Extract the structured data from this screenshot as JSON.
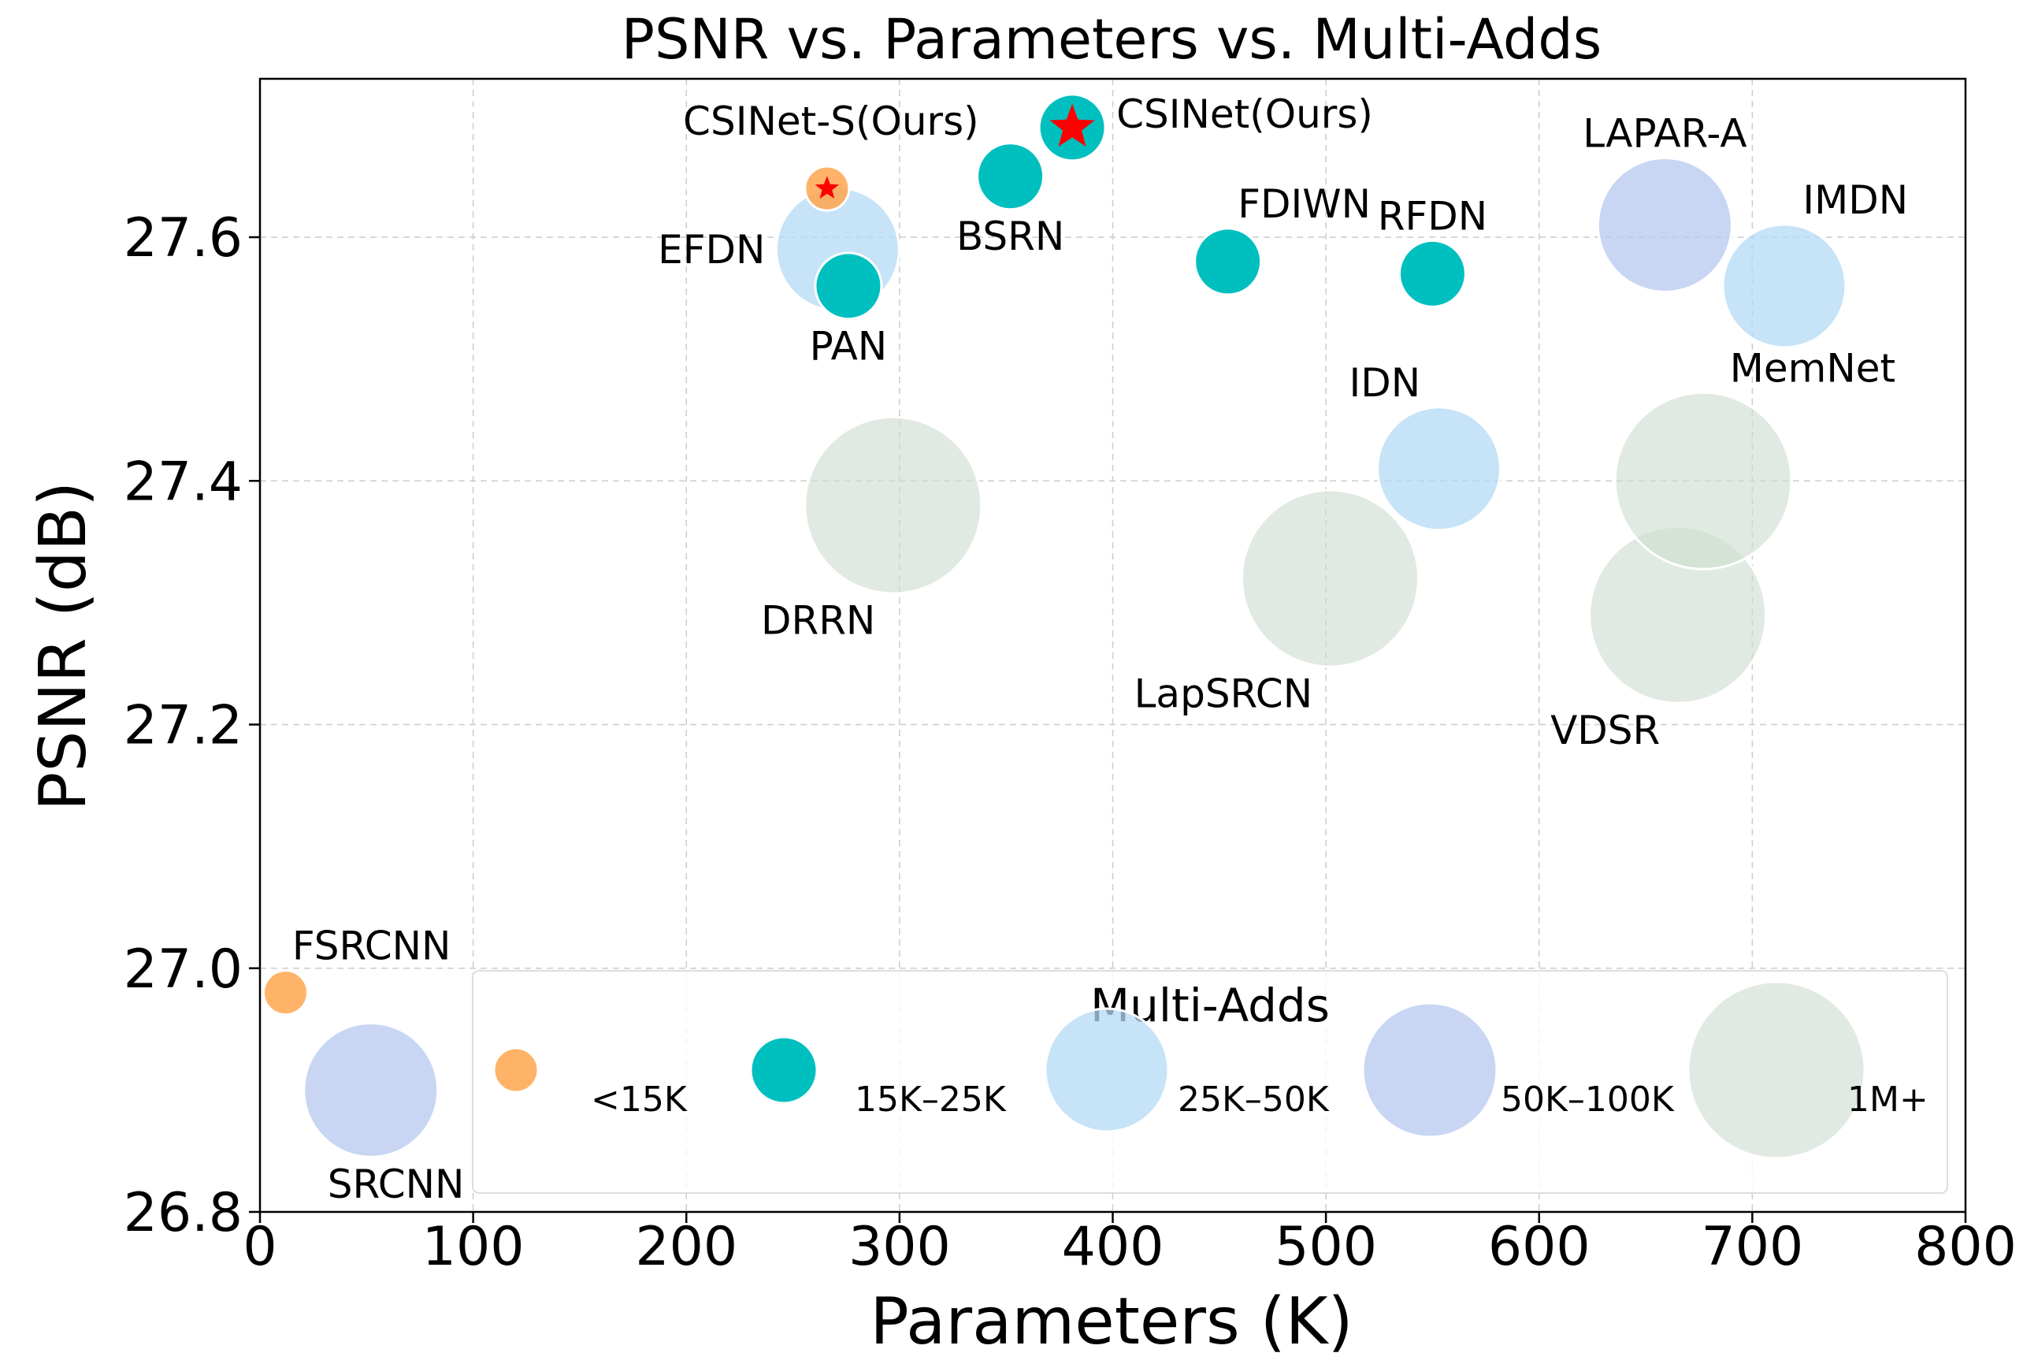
{
  "chart_data": {
    "type": "scatter",
    "title": "PSNR vs. Parameters vs. Multi-Adds",
    "xlabel": "Parameters (K)",
    "ylabel": "PSNR (dB)",
    "xlim": [
      0,
      800
    ],
    "ylim": [
      26.8,
      27.73
    ],
    "xticks": [
      0,
      100,
      200,
      300,
      400,
      500,
      600,
      700,
      800
    ],
    "yticks": [
      26.8,
      27.0,
      27.2,
      27.4,
      27.6
    ],
    "ytick_labels": [
      "26.8",
      "27.0",
      "27.2",
      "27.4",
      "27.6"
    ],
    "grid": true,
    "legend": {
      "title": "Multi-Adds",
      "placement": "bottom-right",
      "entries": [
        {
          "label": "<15K",
          "category": "lt15k"
        },
        {
          "label": "15K–25K",
          "category": "15k-25k"
        },
        {
          "label": "25K–50K",
          "category": "25k-50k"
        },
        {
          "label": "50K–100K",
          "category": "50k-100k"
        },
        {
          "label": "1M+",
          "category": "1m-plus"
        }
      ]
    },
    "categories": {
      "lt15k": {
        "color": "#ffa64d",
        "size": 1,
        "opacity": 0.85
      },
      "15k-25k": {
        "color": "#00bfbf",
        "size": 2,
        "opacity": 1.0
      },
      "25k-50k": {
        "color": "#b3d9f5",
        "size": 3,
        "opacity": 0.75
      },
      "50k-100k": {
        "color": "#b6c8f0",
        "size": 4,
        "opacity": 0.75
      },
      "1m-plus": {
        "color": "#cddccf",
        "size": 5,
        "opacity": 0.6
      }
    },
    "points": [
      {
        "name": "SRCNN",
        "label": "SRCNN",
        "params": 52,
        "psnr": 26.9,
        "category": "50k-100k",
        "label_anchor": "below-left"
      },
      {
        "name": "FSRCNN",
        "label": "FSRCNN",
        "params": 12,
        "psnr": 26.98,
        "category": "lt15k",
        "label_anchor": "above-right"
      },
      {
        "name": "DRRN",
        "label": "DRRN",
        "params": 297,
        "psnr": 27.38,
        "category": "1m-plus",
        "label_anchor": "below-left"
      },
      {
        "name": "LapSRCN",
        "label": "LapSRCN",
        "params": 502,
        "psnr": 27.32,
        "category": "1m-plus",
        "label_anchor": "below-left"
      },
      {
        "name": "VDSR",
        "label": "VDSR",
        "params": 665,
        "psnr": 27.29,
        "category": "1m-plus",
        "label_anchor": "below-left"
      },
      {
        "name": "MemNet",
        "label": "MemNet",
        "params": 677,
        "psnr": 27.4,
        "category": "1m-plus",
        "label_anchor": "above-right"
      },
      {
        "name": "IDN",
        "label": "IDN",
        "params": 553,
        "psnr": 27.41,
        "category": "25k-50k",
        "label_anchor": "above-left"
      },
      {
        "name": "LAPAR-A",
        "label": "LAPAR-A",
        "params": 659,
        "psnr": 27.61,
        "category": "50k-100k",
        "label_anchor": "above"
      },
      {
        "name": "IMDN",
        "label": "IMDN",
        "params": 715,
        "psnr": 27.56,
        "category": "25k-50k",
        "label_anchor": "above-right"
      },
      {
        "name": "EFDN",
        "label": "EFDN",
        "params": 271,
        "psnr": 27.59,
        "category": "25k-50k",
        "label_anchor": "left"
      },
      {
        "name": "PAN",
        "label": "PAN",
        "params": 276,
        "psnr": 27.56,
        "category": "15k-25k",
        "label_anchor": "below"
      },
      {
        "name": "BSRN",
        "label": "BSRN",
        "params": 352,
        "psnr": 27.65,
        "category": "15k-25k",
        "label_anchor": "below"
      },
      {
        "name": "FDIWN",
        "label": "FDIWN",
        "params": 454,
        "psnr": 27.58,
        "category": "15k-25k",
        "label_anchor": "above-right"
      },
      {
        "name": "RFDN",
        "label": "RFDN",
        "params": 550,
        "psnr": 27.57,
        "category": "15k-25k",
        "label_anchor": "above"
      },
      {
        "name": "CSINet-S",
        "label": "CSINet-S(Ours)",
        "params": 266,
        "psnr": 27.64,
        "category": "lt15k",
        "star": true,
        "label_anchor": "above"
      },
      {
        "name": "CSINet",
        "label": "CSINet(Ours)",
        "params": 381,
        "psnr": 27.69,
        "category": "15k-25k",
        "star": true,
        "label_anchor": "right"
      }
    ]
  }
}
